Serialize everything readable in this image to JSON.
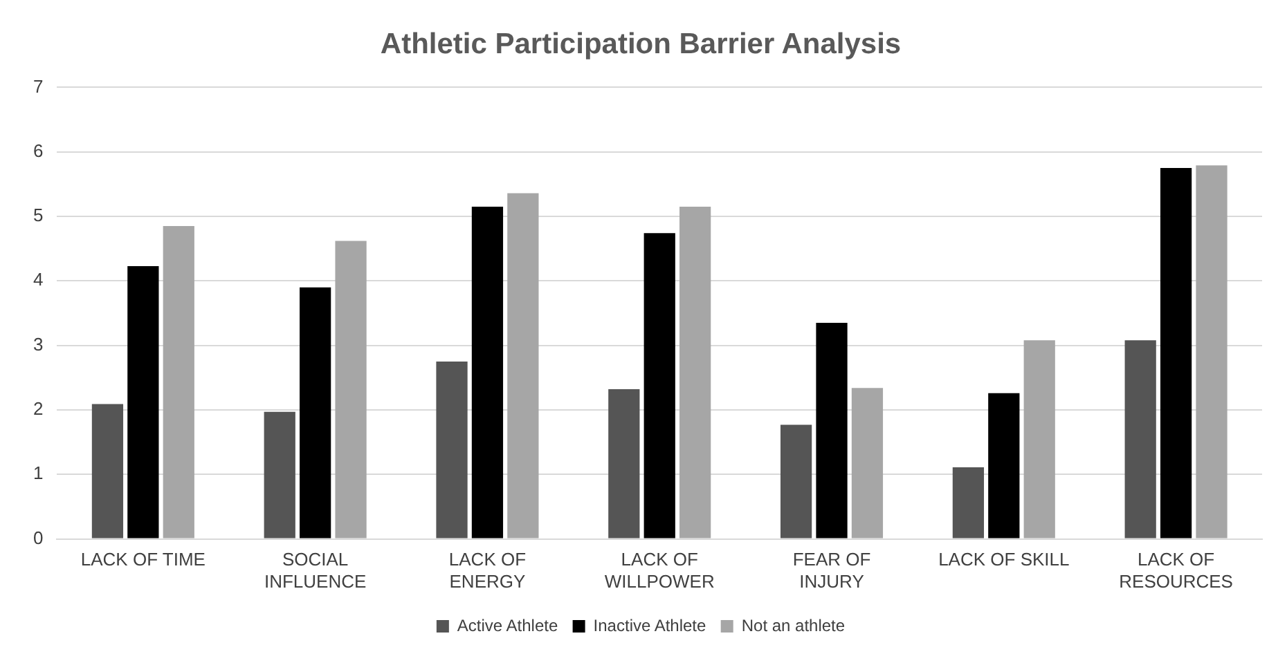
{
  "chart_data": {
    "type": "bar",
    "title": "Athletic Participation Barrier Analysis",
    "categories": [
      "LACK OF TIME",
      "SOCIAL INFLUENCE",
      "LACK OF ENERGY",
      "LACK OF WILLPOWER",
      "FEAR OF INJURY",
      "LACK OF SKILL",
      "LACK OF RESOURCES"
    ],
    "series": [
      {
        "name": "Active Athlete",
        "color": "#555555",
        "values": [
          2.09,
          1.97,
          2.75,
          2.32,
          1.77,
          1.11,
          3.08
        ]
      },
      {
        "name": "Inactive Athlete",
        "color": "#000000",
        "values": [
          4.23,
          3.9,
          5.15,
          4.74,
          3.35,
          2.26,
          5.75
        ]
      },
      {
        "name": "Not an athlete",
        "color": "#a6a6a6",
        "values": [
          4.85,
          4.62,
          5.36,
          5.15,
          2.34,
          3.08,
          5.79
        ]
      }
    ],
    "ylim": [
      0,
      7
    ],
    "yticks": [
      0,
      1,
      2,
      3,
      4,
      5,
      6,
      7
    ],
    "grid": "y",
    "legend": "bottom"
  }
}
